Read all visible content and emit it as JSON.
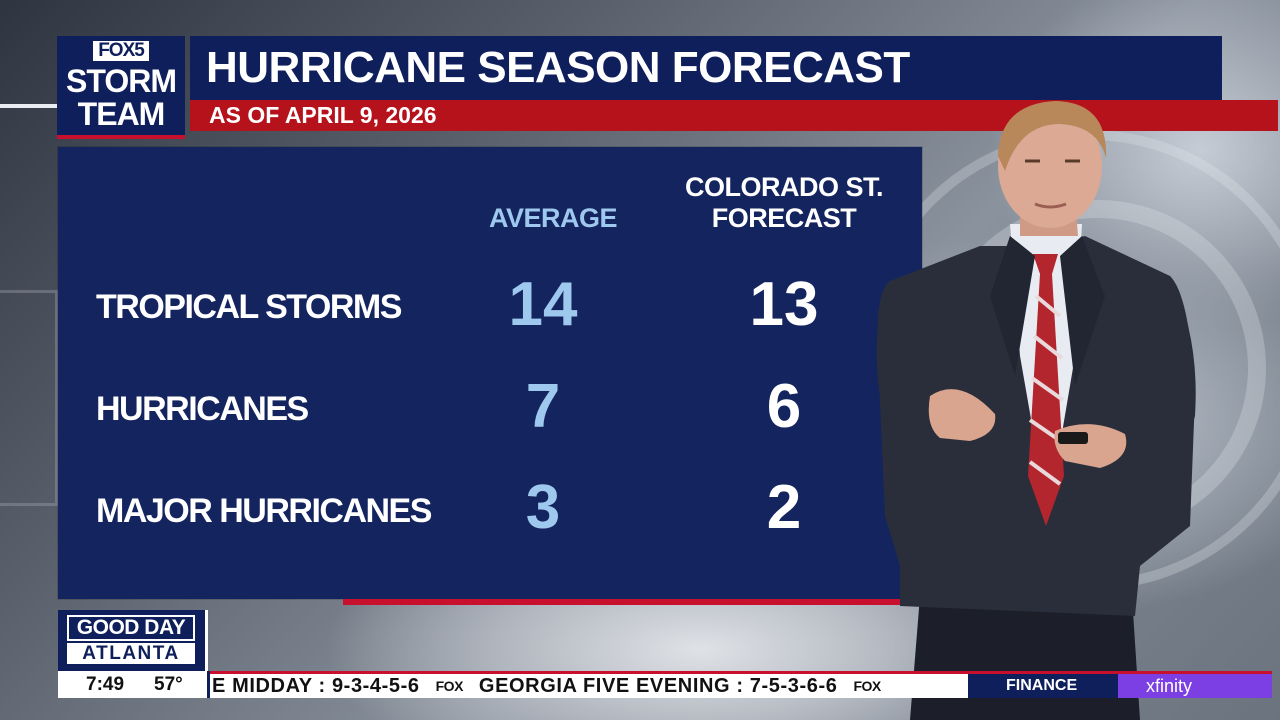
{
  "logo": {
    "network": "FOX5",
    "line1": "STORM",
    "line2": "TEAM"
  },
  "header": {
    "title": "HURRICANE SEASON FORECAST",
    "subtitle": "AS OF APRIL 9, 2026"
  },
  "table": {
    "col_average": "AVERAGE",
    "col_forecast_line1": "COLORADO ST.",
    "col_forecast_line2": "FORECAST",
    "rows": [
      {
        "label": "TROPICAL STORMS",
        "average": "14",
        "forecast": "13"
      },
      {
        "label": "HURRICANES",
        "average": "7",
        "forecast": "6"
      },
      {
        "label": "MAJOR HURRICANES",
        "average": "3",
        "forecast": "2"
      }
    ]
  },
  "show": {
    "line1": "GOOD DAY",
    "line2": "ATLANTA"
  },
  "status": {
    "time": "7:49",
    "temperature": "57°"
  },
  "ticker": {
    "item1": "E MIDDAY : 9-3-4-5-6",
    "fox1": "FOX",
    "item2": "GEORGIA FIVE EVENING : 7-5-3-6-6",
    "fox2": "FOX"
  },
  "segment": {
    "finance": "FINANCE",
    "sponsor": "xfinity"
  },
  "colors": {
    "navy": "#0f1f5c",
    "panel": "#14245e",
    "red": "#b5121b",
    "light_blue": "#9fc8ee",
    "sponsor_purple": "#7b3fe4"
  }
}
